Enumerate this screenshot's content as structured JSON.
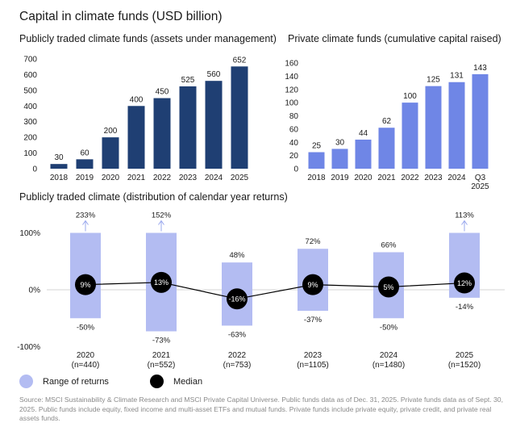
{
  "page": {
    "title": "Capital in climate funds (USD billion)",
    "source_note": "Source: MSCI Sustainability & Climate Research and MSCI Private Capital Universe. Public funds data as of Dec. 31, 2025. Private funds data as of Sept. 30, 2025. Public funds include equity, fixed income and multi-asset ETFs and mutual funds. Private funds include private equity, private credit, and private real assets funds."
  },
  "colors": {
    "public_bar": "#1f3f73",
    "private_bar": "#6f86e6",
    "range_box": "#b3bcf2",
    "median_dot": "#000000",
    "axis_text": "#1a1a1a",
    "zero_line": "#d4d4d4",
    "arrow": "#9aa8ee"
  },
  "chart_data": [
    {
      "type": "bar",
      "title": "Publicly traded climate funds (assets under management)",
      "categories": [
        "2018",
        "2019",
        "2020",
        "2021",
        "2022",
        "2023",
        "2024",
        "2025"
      ],
      "values": [
        30,
        60,
        200,
        400,
        450,
        525,
        560,
        652
      ],
      "data_labels": [
        "30",
        "60",
        "200",
        "400",
        "450",
        "525",
        "560",
        "652"
      ],
      "yticks": [
        0,
        100,
        200,
        300,
        400,
        500,
        600,
        700
      ],
      "ylim": [
        0,
        700
      ],
      "grid": false
    },
    {
      "type": "bar",
      "title": "Private climate funds (cumulative capital raised)",
      "categories": [
        [
          "2018"
        ],
        [
          "2019"
        ],
        [
          "2020"
        ],
        [
          "2021"
        ],
        [
          "2022"
        ],
        [
          "2023"
        ],
        [
          "2024"
        ],
        [
          "Q3",
          "2025"
        ]
      ],
      "values": [
        25,
        30,
        44,
        62,
        100,
        125,
        131,
        143
      ],
      "data_labels": [
        "25",
        "30",
        "44",
        "62",
        "100",
        "125",
        "131",
        "143"
      ],
      "yticks": [
        0,
        20,
        40,
        60,
        80,
        100,
        120,
        140,
        160
      ],
      "ylim": [
        0,
        160
      ],
      "grid": false
    },
    {
      "type": "range",
      "title": "Publicly traded climate (distribution of calendar year returns)",
      "categories": [
        {
          "year": "2020",
          "n": "(n=440)"
        },
        {
          "year": "2021",
          "n": "(n=552)"
        },
        {
          "year": "2022",
          "n": "(n=753)"
        },
        {
          "year": "2023",
          "n": "(n=1105)"
        },
        {
          "year": "2024",
          "n": "(n=1480)"
        },
        {
          "year": "2025",
          "n": "(n=1520)"
        }
      ],
      "high": [
        233,
        152,
        48,
        72,
        66,
        113
      ],
      "high_labels": [
        "233%",
        "152%",
        "48%",
        "72%",
        "66%",
        "113%"
      ],
      "low": [
        -50,
        -73,
        -63,
        -37,
        -50,
        -14
      ],
      "low_labels": [
        "-50%",
        "-73%",
        "-63%",
        "-37%",
        "-50%",
        "-14%"
      ],
      "median": [
        9,
        13,
        -16,
        9,
        5,
        12
      ],
      "median_labels": [
        "9%",
        "13%",
        "-16%",
        "9%",
        "5%",
        "12%"
      ],
      "yticks": [
        {
          "value": 100,
          "label": "100%"
        },
        {
          "value": 0,
          "label": "0%"
        },
        {
          "value": -100,
          "label": "-100%"
        }
      ],
      "ylim": [
        -100,
        100
      ],
      "clipped_above_axis": [
        true,
        true,
        false,
        false,
        false,
        true
      ],
      "legend": {
        "range_label": "Range of returns",
        "median_label": "Median"
      }
    }
  ]
}
